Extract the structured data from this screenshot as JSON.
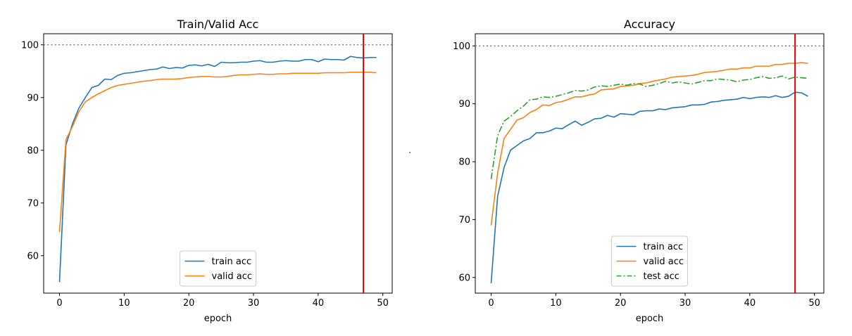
{
  "chart_data": [
    {
      "type": "line",
      "title": "Train/Valid Acc",
      "xlabel": "epoch",
      "ylabel": "",
      "xlim": [
        -2.45,
        51.45
      ],
      "ylim": [
        52.9,
        102.1
      ],
      "xticks": [
        0,
        10,
        20,
        30,
        40,
        50
      ],
      "yticks": [
        60,
        70,
        80,
        90,
        100
      ],
      "legend_position": "lower-center",
      "reference_line": {
        "y": 100,
        "style": "dotted",
        "color": "#808080"
      },
      "marker_line": {
        "x": 47,
        "color": "#e00000"
      },
      "series": [
        {
          "name": "train acc",
          "color": "#1f77b4",
          "dash": "solid",
          "x": [
            0,
            1,
            2,
            3,
            4,
            5,
            6,
            7,
            8,
            9,
            10,
            11,
            12,
            13,
            14,
            15,
            16,
            17,
            18,
            19,
            20,
            21,
            22,
            23,
            24,
            25,
            26,
            27,
            28,
            29,
            30,
            31,
            32,
            33,
            34,
            35,
            36,
            37,
            38,
            39,
            40,
            41,
            42,
            43,
            44,
            45,
            46,
            47,
            48,
            49
          ],
          "y": [
            55.0,
            81.0,
            85.0,
            88.0,
            90.0,
            91.9,
            92.3,
            93.5,
            93.4,
            94.2,
            94.6,
            94.7,
            94.9,
            95.1,
            95.3,
            95.4,
            95.8,
            95.5,
            95.7,
            95.6,
            96.1,
            96.2,
            96.0,
            96.3,
            95.9,
            96.7,
            96.6,
            96.6,
            96.7,
            96.7,
            96.9,
            97.0,
            96.7,
            96.7,
            96.9,
            97.0,
            96.9,
            96.9,
            97.2,
            97.2,
            96.8,
            97.3,
            97.2,
            97.2,
            97.1,
            97.8,
            97.6,
            97.5,
            97.6,
            97.6
          ]
        },
        {
          "name": "valid acc",
          "color": "#ff7f0e",
          "dash": "solid",
          "x": [
            0,
            1,
            2,
            3,
            4,
            5,
            6,
            7,
            8,
            9,
            10,
            11,
            12,
            13,
            14,
            15,
            16,
            17,
            18,
            19,
            20,
            21,
            22,
            23,
            24,
            25,
            26,
            27,
            28,
            29,
            30,
            31,
            32,
            33,
            34,
            35,
            36,
            37,
            38,
            39,
            40,
            41,
            42,
            43,
            44,
            45,
            46,
            47,
            48,
            49
          ],
          "y": [
            64.5,
            82.0,
            84.5,
            87.3,
            89.2,
            90.0,
            90.7,
            91.3,
            91.9,
            92.3,
            92.5,
            92.7,
            92.9,
            93.1,
            93.2,
            93.4,
            93.5,
            93.5,
            93.5,
            93.6,
            93.8,
            93.9,
            94.0,
            94.0,
            93.9,
            93.9,
            94.0,
            94.2,
            94.3,
            94.3,
            94.4,
            94.5,
            94.4,
            94.4,
            94.5,
            94.5,
            94.6,
            94.6,
            94.6,
            94.6,
            94.6,
            94.7,
            94.7,
            94.7,
            94.7,
            94.8,
            94.8,
            94.8,
            94.8,
            94.7
          ]
        }
      ]
    },
    {
      "type": "line",
      "title": "Accuracy",
      "xlabel": "epoch",
      "ylabel": "",
      "xlim": [
        -2.45,
        51.45
      ],
      "ylim": [
        57.3,
        102.1
      ],
      "xticks": [
        0,
        10,
        20,
        30,
        40,
        50
      ],
      "yticks": [
        60,
        70,
        80,
        90,
        100
      ],
      "legend_position": "lower-center",
      "reference_line": {
        "y": 100,
        "style": "dotted",
        "color": "#808080"
      },
      "marker_line": {
        "x": 47,
        "color": "#e00000"
      },
      "series": [
        {
          "name": "train acc",
          "color": "#1f77b4",
          "dash": "solid",
          "x": [
            0,
            1,
            2,
            3,
            4,
            5,
            6,
            7,
            8,
            9,
            10,
            11,
            12,
            13,
            14,
            15,
            16,
            17,
            18,
            19,
            20,
            21,
            22,
            23,
            24,
            25,
            26,
            27,
            28,
            29,
            30,
            31,
            32,
            33,
            34,
            35,
            36,
            37,
            38,
            39,
            40,
            41,
            42,
            43,
            44,
            45,
            46,
            47,
            48,
            49
          ],
          "y": [
            59.0,
            74.0,
            79.0,
            82.0,
            82.8,
            83.6,
            84.0,
            85.0,
            85.0,
            85.3,
            85.8,
            85.7,
            86.4,
            87.0,
            86.3,
            86.8,
            87.4,
            87.5,
            88.0,
            87.7,
            88.3,
            88.2,
            88.1,
            88.7,
            88.8,
            88.8,
            89.1,
            89.0,
            89.3,
            89.4,
            89.5,
            89.8,
            89.8,
            89.9,
            90.3,
            90.4,
            90.6,
            90.7,
            90.8,
            91.1,
            90.9,
            91.1,
            91.2,
            91.1,
            91.4,
            91.1,
            91.3,
            92.0,
            91.9,
            91.3
          ]
        },
        {
          "name": "valid acc",
          "color": "#ff7f0e",
          "dash": "solid",
          "x": [
            0,
            1,
            2,
            3,
            4,
            5,
            6,
            7,
            8,
            9,
            10,
            11,
            12,
            13,
            14,
            15,
            16,
            17,
            18,
            19,
            20,
            21,
            22,
            23,
            24,
            25,
            26,
            27,
            28,
            29,
            30,
            31,
            32,
            33,
            34,
            35,
            36,
            37,
            38,
            39,
            40,
            41,
            42,
            43,
            44,
            45,
            46,
            47,
            48,
            49
          ],
          "y": [
            69.0,
            78.0,
            84.0,
            85.6,
            87.2,
            87.6,
            88.5,
            89.0,
            89.8,
            89.7,
            90.2,
            90.4,
            90.8,
            91.2,
            91.2,
            91.5,
            91.7,
            92.4,
            92.5,
            92.6,
            93.0,
            93.1,
            93.2,
            93.5,
            93.6,
            93.9,
            94.1,
            94.3,
            94.6,
            94.7,
            94.8,
            94.9,
            95.1,
            95.4,
            95.5,
            95.6,
            95.8,
            96.0,
            96.0,
            96.2,
            96.2,
            96.5,
            96.5,
            96.5,
            96.8,
            96.8,
            97.0,
            97.0,
            97.1,
            97.0
          ]
        },
        {
          "name": "test acc",
          "color": "#2ca02c",
          "dash": "dashdot",
          "x": [
            0,
            1,
            2,
            3,
            4,
            5,
            6,
            7,
            8,
            9,
            10,
            11,
            12,
            13,
            14,
            15,
            16,
            17,
            18,
            19,
            20,
            21,
            22,
            23,
            24,
            25,
            26,
            27,
            28,
            29,
            30,
            31,
            32,
            33,
            34,
            35,
            36,
            37,
            38,
            39,
            40,
            41,
            42,
            43,
            44,
            45,
            46,
            47,
            48,
            49
          ],
          "y": [
            77.0,
            84.5,
            87.0,
            87.8,
            88.8,
            89.6,
            90.7,
            90.8,
            91.2,
            91.1,
            91.3,
            91.6,
            91.9,
            92.3,
            92.2,
            92.4,
            92.9,
            93.1,
            93.0,
            93.2,
            93.4,
            93.2,
            93.5,
            93.4,
            93.0,
            93.2,
            93.5,
            93.9,
            93.6,
            93.8,
            93.6,
            93.4,
            93.7,
            94.0,
            94.0,
            94.3,
            94.2,
            94.1,
            93.8,
            94.1,
            94.2,
            94.5,
            94.7,
            94.4,
            94.5,
            94.8,
            94.3,
            94.6,
            94.5,
            94.4
          ]
        }
      ]
    }
  ]
}
